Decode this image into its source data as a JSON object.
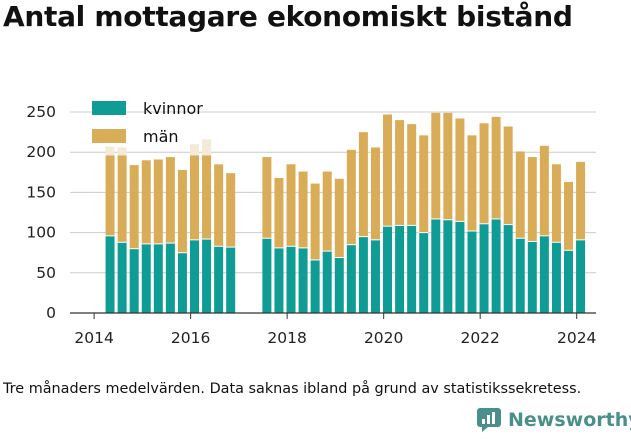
{
  "title": "Antal mottagare ekonomiskt bistånd",
  "footnote": "Tre månaders medelvärden. Data saknas ibland på grund av statistikssekretess.",
  "brand": {
    "name": "Newsworthy",
    "color": "#4a8f8a"
  },
  "colors": {
    "kvinnor": "#0e9c95",
    "man": "#d9ad57",
    "faded": "#f3ead8",
    "grid": "#cccccc",
    "axis": "#333333"
  },
  "chart_data": {
    "type": "bar",
    "stacked": true,
    "grid": "horizontal",
    "legend_position": "top-left",
    "xlim": [
      2013.5,
      2024.4
    ],
    "ylim": [
      0,
      265
    ],
    "xticks": [
      2014,
      2016,
      2018,
      2020,
      2022,
      2024
    ],
    "yticks": [
      0,
      50,
      100,
      150,
      200,
      250
    ],
    "x": [
      2014.33,
      2014.58,
      2014.83,
      2015.08,
      2015.33,
      2015.58,
      2015.83,
      2016.08,
      2016.33,
      2016.58,
      2016.83,
      2017.58,
      2017.83,
      2018.08,
      2018.33,
      2018.58,
      2018.83,
      2019.08,
      2019.33,
      2019.58,
      2019.83,
      2020.08,
      2020.33,
      2020.58,
      2020.83,
      2021.08,
      2021.33,
      2021.58,
      2021.83,
      2022.08,
      2022.33,
      2022.58,
      2022.83,
      2023.08,
      2023.33,
      2023.58,
      2023.83,
      2024.08
    ],
    "series": [
      {
        "name": "kvinnor",
        "color": "#0e9c95",
        "values": [
          96,
          88,
          80,
          86,
          86,
          87,
          75,
          91,
          92,
          83,
          82,
          93,
          81,
          83,
          81,
          66,
          77,
          69,
          85,
          95,
          91,
          108,
          109,
          109,
          100,
          117,
          116,
          114,
          102,
          111,
          117,
          110,
          93,
          89,
          96,
          88,
          78,
          91
        ]
      },
      {
        "name": "män",
        "color": "#d9ad57",
        "values": [
          100,
          108,
          104,
          104,
          105,
          107,
          103,
          105,
          104,
          102,
          92,
          101,
          87,
          102,
          95,
          95,
          99,
          98,
          118,
          130,
          115,
          139,
          131,
          126,
          121,
          132,
          133,
          128,
          119,
          125,
          127,
          122,
          108,
          105,
          112,
          97,
          85,
          97
        ]
      }
    ],
    "faded_extra": [
      11,
      10,
      0,
      0,
      0,
      0,
      0,
      14,
      20,
      0,
      0,
      0,
      0,
      0,
      0,
      0,
      0,
      0,
      0,
      0,
      0,
      0,
      0,
      0,
      0,
      0,
      0,
      0,
      0,
      0,
      0,
      0,
      0,
      0,
      0,
      0,
      0,
      0
    ]
  }
}
